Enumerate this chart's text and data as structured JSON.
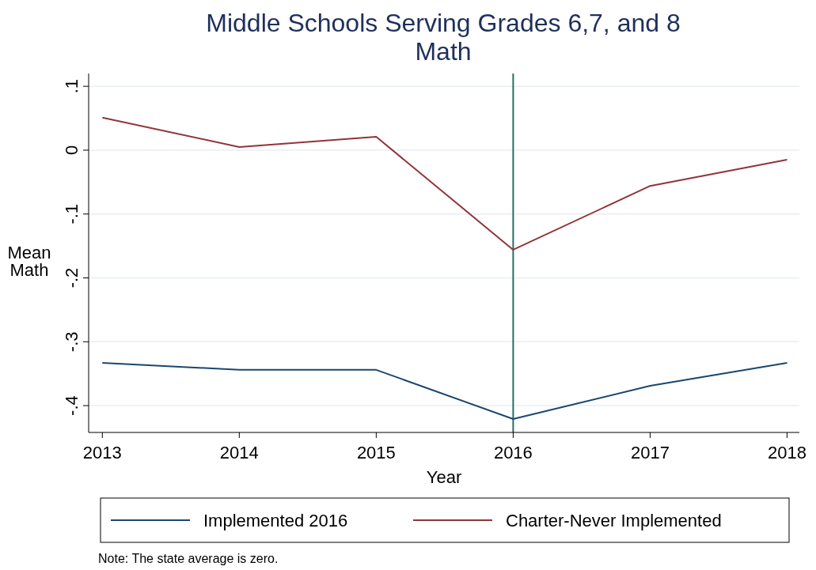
{
  "chart_data": {
    "type": "line",
    "title": "Middle Schools Serving Grades 6,7, and 8",
    "subtitle": "Math",
    "xlabel": "Year",
    "ylabel": "Mean Math",
    "x": [
      2013,
      2014,
      2015,
      2016,
      2017,
      2018
    ],
    "series": [
      {
        "name": "Implemented 2016",
        "color": "#1a476f",
        "values": [
          -0.333,
          -0.344,
          -0.344,
          -0.421,
          -0.369,
          -0.333
        ]
      },
      {
        "name": "Charter-Never Implemented",
        "color": "#90353b",
        "values": [
          0.051,
          0.005,
          0.021,
          -0.156,
          -0.056,
          -0.015
        ]
      }
    ],
    "xlim": [
      2012.9,
      2018.09
    ],
    "xticks": [
      2013,
      2014,
      2015,
      2016,
      2017,
      2018
    ],
    "ylim": [
      -0.442,
      0.12
    ],
    "yticks": [
      {
        "value": 0.1,
        "label": ".1"
      },
      0,
      {
        "value": -0.1,
        "label": "-.1"
      },
      {
        "value": -0.2,
        "label": "-.2"
      },
      {
        "value": -0.3,
        "label": "-.3"
      },
      {
        "value": -0.4,
        "label": "-.4"
      }
    ],
    "ref_lines": [
      {
        "axis": "x",
        "value": 2016,
        "color": "#2d6d66"
      }
    ],
    "grid": "y",
    "legend": "bottom",
    "marker": "none",
    "line_style": "solid",
    "annotations": [
      "Note: The state average is zero."
    ]
  }
}
